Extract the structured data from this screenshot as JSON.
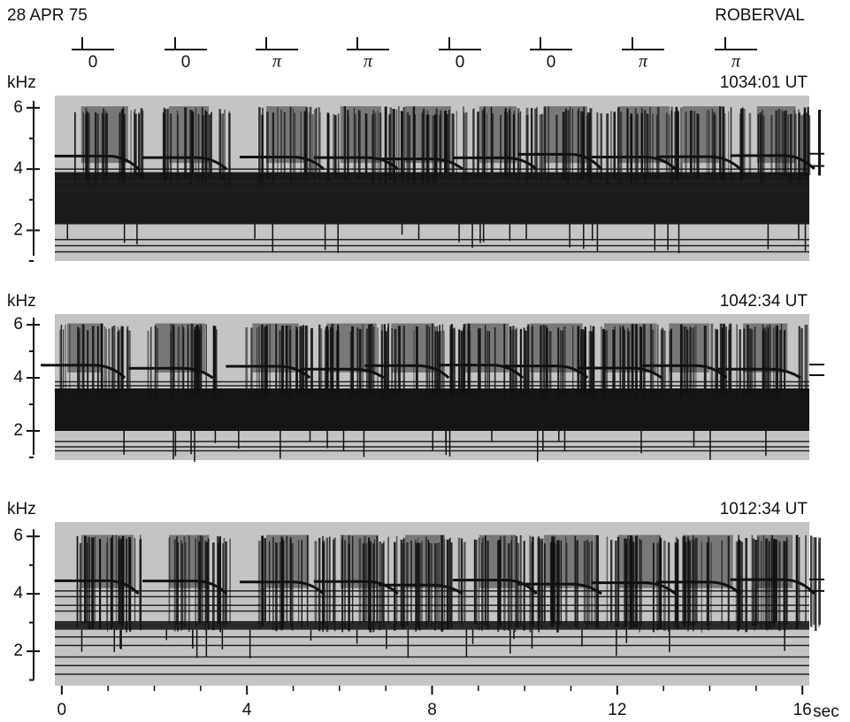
{
  "header": {
    "date": "28 APR 75",
    "station": "ROBERVAL"
  },
  "phase_markers": [
    "0",
    "0",
    "π",
    "π",
    "0",
    "0",
    "π",
    "π"
  ],
  "panels": [
    {
      "y_label": "kHz",
      "time": "1034:01 UT",
      "ylim": [
        1,
        6.4
      ],
      "yticks": [
        2,
        4,
        6
      ],
      "yminor": [
        1,
        3,
        5
      ]
    },
    {
      "y_label": "kHz",
      "time": "1042:34 UT",
      "ylim": [
        0.9,
        6.4
      ],
      "yticks": [
        2,
        4,
        6
      ],
      "yminor": [
        1,
        3,
        5
      ]
    },
    {
      "y_label": "kHz",
      "time": "1012:34 UT",
      "ylim": [
        0.8,
        6.5
      ],
      "yticks": [
        2,
        4,
        6
      ],
      "yminor": [
        1,
        3,
        5
      ]
    }
  ],
  "x_axis": {
    "xlim": [
      -0.15,
      16.15
    ],
    "xticks": [
      0,
      4,
      8,
      12,
      16
    ],
    "unit": "sec"
  }
}
